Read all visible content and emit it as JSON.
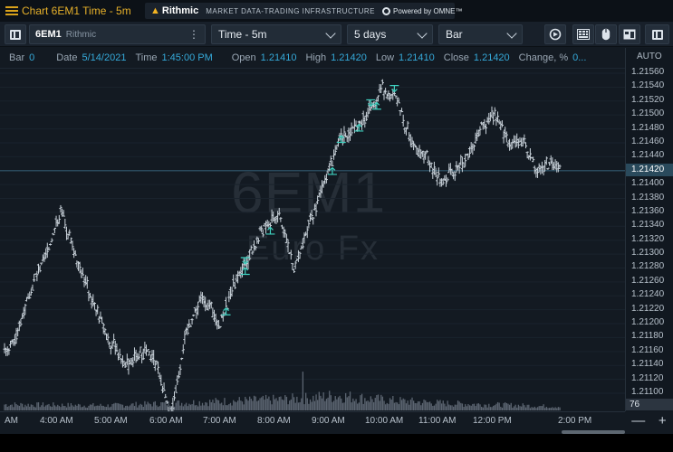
{
  "window": {
    "title": "Chart 6EM1 Time - 5m",
    "brand_name": "Rithmic",
    "brand_tagline": "MARKET DATA-TRADING INFRASTRUCTURE",
    "powered_by": "Powered by OMNE™"
  },
  "toolbar": {
    "symbol": "6EM1",
    "exchange": "Rithmic",
    "more_glyph": "⋮",
    "interval": "Time - 5m",
    "range": "5 days",
    "chart_style": "Bar",
    "icons": [
      "panel-toggle-icon",
      "replay-icon",
      "keypad-icon",
      "mouse-icon",
      "template-icon"
    ]
  },
  "infobar": {
    "bar_label": "Bar",
    "bar_value": "0",
    "date_label": "Date",
    "date_value": "5/14/2021",
    "time_label": "Time",
    "time_value": "1:45:00 PM",
    "open_label": "Open",
    "open_value": "1.21410",
    "high_label": "High",
    "high_value": "1.21420",
    "low_label": "Low",
    "low_value": "1.21410",
    "close_label": "Close",
    "close_value": "1.21420",
    "change_label": "Change, %",
    "change_value": "0..."
  },
  "watermark": {
    "symbol": "6EM1",
    "name": "Euro Fx"
  },
  "price_axis": {
    "mode": "AUTO",
    "last_price": "1.21420",
    "volume_tag": "76",
    "ticks": [
      "1.21560",
      "1.21540",
      "1.21520",
      "1.21500",
      "1.21480",
      "1.21460",
      "1.21440",
      "1.21420",
      "1.21400",
      "1.21380",
      "1.21360",
      "1.21340",
      "1.21320",
      "1.21300",
      "1.21280",
      "1.21260",
      "1.21240",
      "1.21220",
      "1.21200",
      "1.21180",
      "1.21160",
      "1.21140",
      "1.21120",
      "1.21100"
    ]
  },
  "time_axis": {
    "ticks": [
      "AM",
      "4:00 AM",
      "5:00 AM",
      "6:00 AM",
      "7:00 AM",
      "8:00 AM",
      "9:00 AM",
      "10:00 AM",
      "11:00 AM",
      "12:00 PM",
      "2:00 PM"
    ]
  },
  "zoom": {
    "minus": "—",
    "plus": "+"
  },
  "colors": {
    "background": "#131a22",
    "bar": "#c9d2da",
    "volume": "#5b6470",
    "arrow": "#3fd1c0",
    "accent": "#35a9d9",
    "title": "#e6b02a",
    "last_price_line": "#2a4a5c"
  },
  "chart_data": {
    "type": "bar",
    "style": "ohlc",
    "symbol": "6EM1",
    "interval": "5m",
    "ylim": [
      1.211,
      1.2157
    ],
    "price_anchors": [
      [
        0,
        1.2116
      ],
      [
        8,
        1.2118
      ],
      [
        16,
        1.2124
      ],
      [
        28,
        1.213
      ],
      [
        38,
        1.2136
      ],
      [
        48,
        1.213
      ],
      [
        58,
        1.2124
      ],
      [
        70,
        1.2118
      ],
      [
        82,
        1.2114
      ],
      [
        94,
        1.2116
      ],
      [
        104,
        1.2114
      ],
      [
        112,
        1.2106
      ],
      [
        122,
        1.2118
      ],
      [
        134,
        1.2124
      ],
      [
        146,
        1.212
      ],
      [
        156,
        1.2126
      ],
      [
        166,
        1.213
      ],
      [
        176,
        1.2134
      ],
      [
        186,
        1.2136
      ],
      [
        196,
        1.2128
      ],
      [
        206,
        1.2134
      ],
      [
        216,
        1.214
      ],
      [
        226,
        1.2146
      ],
      [
        236,
        1.2148
      ],
      [
        246,
        1.215
      ],
      [
        256,
        1.2154
      ],
      [
        266,
        1.2152
      ],
      [
        276,
        1.2146
      ],
      [
        286,
        1.2144
      ],
      [
        296,
        1.214
      ],
      [
        304,
        1.2142
      ],
      [
        314,
        1.2144
      ],
      [
        322,
        1.2148
      ],
      [
        332,
        1.215
      ],
      [
        342,
        1.2146
      ],
      [
        352,
        1.2146
      ],
      [
        360,
        1.2142
      ],
      [
        368,
        1.2143
      ],
      [
        376,
        1.2142
      ]
    ],
    "volume_profile": [
      [
        0,
        22
      ],
      [
        70,
        18
      ],
      [
        110,
        26
      ],
      [
        150,
        34
      ],
      [
        185,
        40
      ],
      [
        205,
        45
      ],
      [
        225,
        55
      ],
      [
        245,
        44
      ],
      [
        265,
        36
      ],
      [
        300,
        26
      ],
      [
        340,
        20
      ],
      [
        376,
        14
      ]
    ],
    "volume_spike": [
      202,
      130
    ],
    "signal_arrows": [
      {
        "bar": 150,
        "dir": "up"
      },
      {
        "bar": 163,
        "dir": "down"
      },
      {
        "bar": 163,
        "dir": "up"
      },
      {
        "bar": 180,
        "dir": "up"
      },
      {
        "bar": 222,
        "dir": "up"
      },
      {
        "bar": 228,
        "dir": "up"
      },
      {
        "bar": 240,
        "dir": "up"
      },
      {
        "bar": 248,
        "dir": "down"
      },
      {
        "bar": 252,
        "dir": "up"
      },
      {
        "bar": 264,
        "dir": "down"
      }
    ],
    "last_price": 1.2142
  }
}
